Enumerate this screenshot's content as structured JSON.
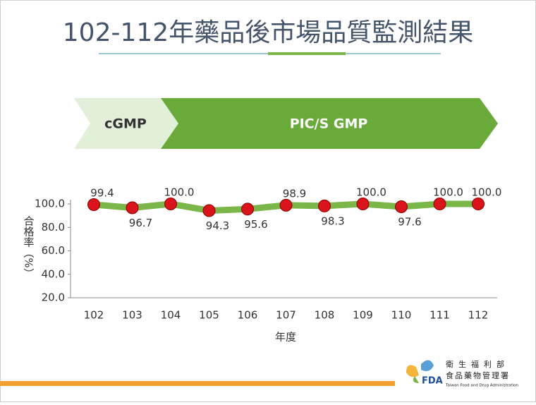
{
  "title": "102-112年藥品後市場品質監測結果",
  "stages": [
    "cGMP",
    "PIC/S GMP"
  ],
  "logo": {
    "mark": "FDA",
    "line1": "衛生福利部",
    "line2": "食品藥物管理署",
    "line3": "Taiwan Food and Drug Administration"
  },
  "chart_data": {
    "type": "line",
    "categories": [
      "102",
      "103",
      "104",
      "105",
      "106",
      "107",
      "108",
      "109",
      "110",
      "111",
      "112"
    ],
    "series": [
      {
        "name": "合格率",
        "color": "#7ab648",
        "marker_color": "#d9141a",
        "values": [
          99.4,
          96.7,
          100.0,
          94.3,
          95.6,
          98.9,
          98.3,
          100.0,
          97.6,
          100.0,
          100.0
        ],
        "value_labels": [
          "99.4",
          "96.7",
          "100.0",
          "94.3",
          "95.6",
          "98.9",
          "98.3",
          "100.0",
          "97.6",
          "100.0",
          "100.0"
        ]
      }
    ],
    "ylim": [
      20,
      100
    ],
    "yticks": [
      {
        "value": 20,
        "label": "20.0"
      },
      {
        "value": 40,
        "label": "40.0"
      },
      {
        "value": 60,
        "label": "60.0"
      },
      {
        "value": 80,
        "label": "80.0"
      },
      {
        "value": 100,
        "label": "100.0"
      }
    ],
    "ylabel": "合格率（%）",
    "xlabel": "年度"
  }
}
